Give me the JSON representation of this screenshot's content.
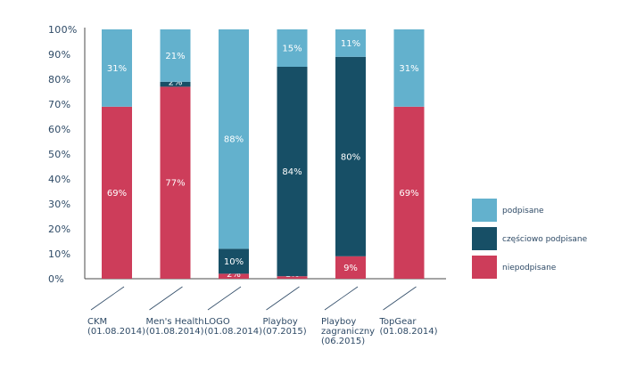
{
  "chart_data": {
    "type": "bar",
    "stacked": true,
    "ylim": [
      0,
      100
    ],
    "yticks": [
      "0%",
      "10%",
      "20%",
      "30%",
      "40%",
      "50%",
      "60%",
      "70%",
      "80%",
      "90%",
      "100%"
    ],
    "categories": [
      [
        "CKM",
        "(01.08.2014)"
      ],
      [
        "Men's Health",
        "(01.08.2014)"
      ],
      [
        "LOGO",
        "(01.08.2014)"
      ],
      [
        "Playboy",
        "(07.2015)"
      ],
      [
        "Playboy",
        "zagraniczny",
        "(06.2015)"
      ],
      [
        "TopGear",
        "(01.08.2014)"
      ]
    ],
    "series": [
      {
        "name": "niepodpisane",
        "color": "#cd3d5a",
        "values": [
          69,
          77,
          2,
          1,
          9,
          69
        ],
        "labels": [
          "69%",
          "77%",
          "2%",
          "1%",
          "9%",
          "69%"
        ]
      },
      {
        "name": "częściowo podpisane",
        "color": "#174f66",
        "values": [
          0,
          2,
          10,
          84,
          80,
          0
        ],
        "labels": [
          "",
          "2%",
          "10%",
          "84%",
          "80%",
          ""
        ]
      },
      {
        "name": "podpisane",
        "color": "#63b1cd",
        "values": [
          31,
          21,
          88,
          15,
          11,
          31
        ],
        "labels": [
          "31%",
          "21%",
          "88%",
          "15%",
          "11%",
          "31%"
        ]
      }
    ],
    "legend_order": [
      2,
      1,
      0
    ],
    "legend_position": "right",
    "grid": false
  }
}
